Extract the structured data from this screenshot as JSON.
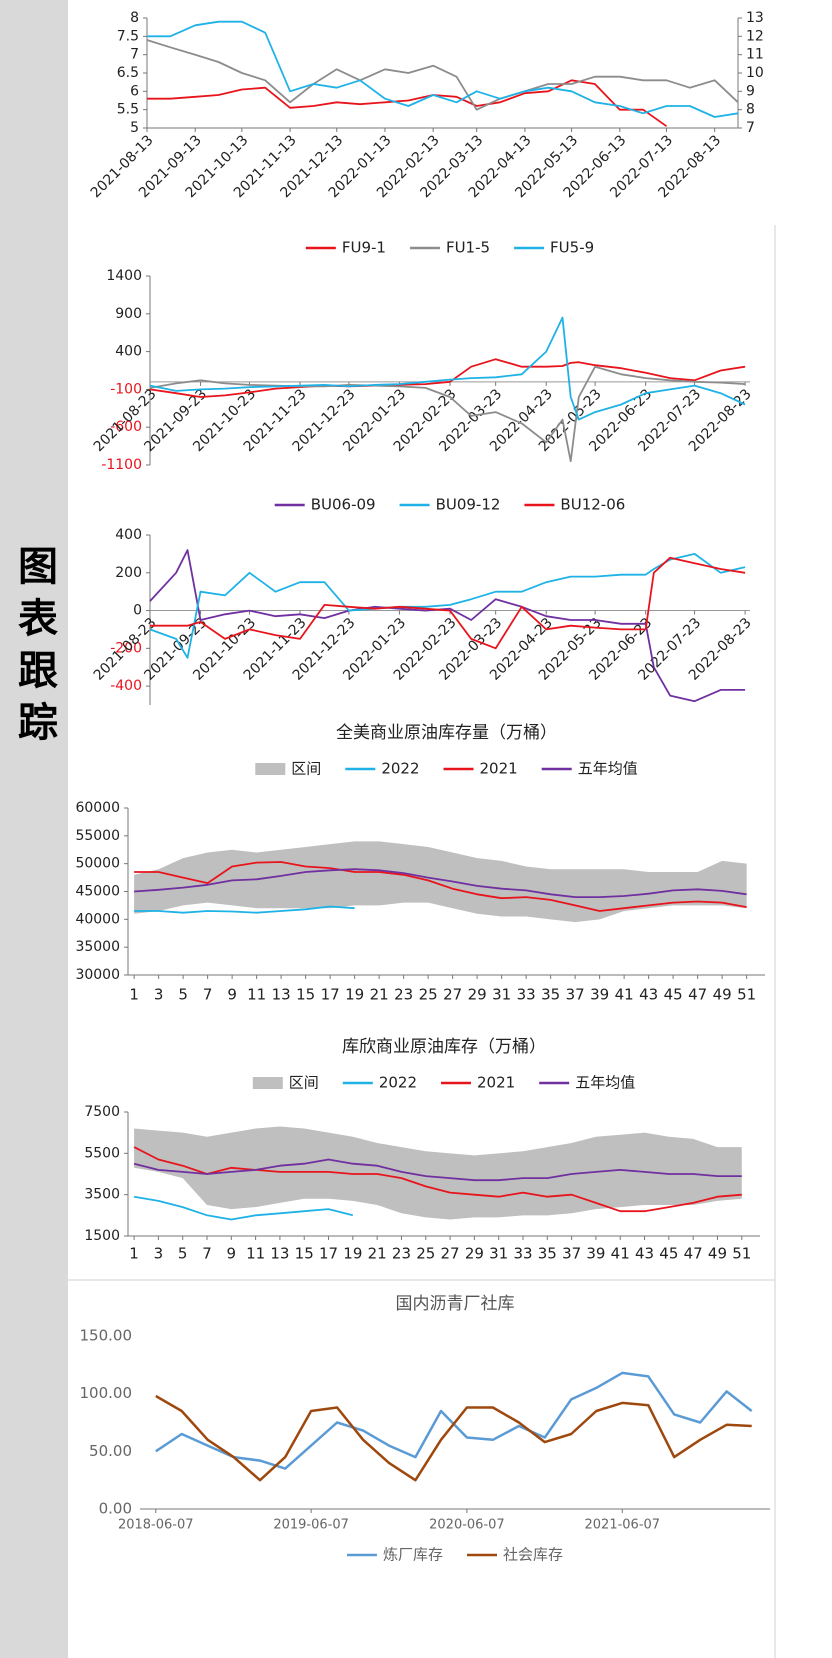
{
  "sidebar_title": "图表跟踪",
  "chart_data": [
    {
      "type": "line",
      "x": [
        "2021-08-13",
        "2021-08-28",
        "2021-09-13",
        "2021-09-28",
        "2021-10-13",
        "2021-10-28",
        "2021-11-13",
        "2021-11-28",
        "2021-12-13",
        "2021-12-28",
        "2022-01-13",
        "2022-01-28",
        "2022-02-13",
        "2022-02-28",
        "2022-03-13",
        "2022-03-28",
        "2022-04-13",
        "2022-04-28",
        "2022-05-13",
        "2022-05-28",
        "2022-06-13",
        "2022-06-28",
        "2022-07-13",
        "2022-07-28",
        "2022-08-13",
        "2022-08-28"
      ],
      "xlim": [
        "2021-08-13",
        "2022-08-28"
      ],
      "xticks": [
        "2021-08-13",
        "2021-09-13",
        "2021-10-13",
        "2021-11-13",
        "2021-12-13",
        "2022-01-13",
        "2022-02-13",
        "2022-03-13",
        "2022-04-13",
        "2022-05-13",
        "2022-06-13",
        "2022-07-13",
        "2022-08-13"
      ],
      "ylim": [
        5,
        8
      ],
      "yticks": [
        5,
        5.5,
        6,
        6.5,
        7,
        7.5,
        8
      ],
      "y2lim": [
        7,
        13
      ],
      "y2ticks": [
        7,
        8,
        9,
        10,
        11,
        12,
        13
      ],
      "series": [
        {
          "color": "#e8141c",
          "values": [
            5.8,
            5.8,
            5.85,
            5.9,
            6.05,
            6.1,
            5.55,
            5.6,
            5.7,
            5.65,
            5.7,
            5.75,
            5.9,
            5.85,
            5.6,
            5.7,
            5.95,
            6.0,
            6.3,
            6.2,
            5.5,
            5.5,
            5.05,
            null,
            null,
            null
          ]
        },
        {
          "color": "#8c8c8c",
          "values": [
            7.4,
            7.2,
            7.0,
            6.8,
            6.5,
            6.3,
            5.7,
            6.2,
            6.6,
            6.3,
            6.6,
            6.5,
            6.7,
            6.4,
            5.5,
            5.8,
            6.0,
            6.2,
            6.2,
            6.4,
            6.4,
            6.3,
            6.3,
            6.1,
            6.3,
            5.7
          ]
        },
        {
          "color": "#1fb2e6",
          "values": [
            7.5,
            7.5,
            7.8,
            7.9,
            7.9,
            7.6,
            6.0,
            6.2,
            6.1,
            6.3,
            5.8,
            5.6,
            5.9,
            5.7,
            6.0,
            5.8,
            6.0,
            6.1,
            6.0,
            5.7,
            5.6,
            5.4,
            5.6,
            5.6,
            5.3,
            5.4
          ]
        }
      ]
    },
    {
      "type": "line",
      "x": [
        "2021-08-23",
        "2021-09-08",
        "2021-09-23",
        "2021-10-08",
        "2021-10-23",
        "2021-11-08",
        "2021-11-23",
        "2021-12-08",
        "2021-12-23",
        "2022-01-08",
        "2022-01-23",
        "2022-02-08",
        "2022-02-23",
        "2022-03-08",
        "2022-03-23",
        "2022-04-08",
        "2022-04-23",
        "2022-05-03",
        "2022-05-08",
        "2022-05-13",
        "2022-05-23",
        "2022-06-08",
        "2022-06-23",
        "2022-07-08",
        "2022-07-23",
        "2022-08-08",
        "2022-08-23"
      ],
      "xlim": [
        "2021-08-23",
        "2022-08-26"
      ],
      "xticks": [
        "2021-08-23",
        "2021-09-23",
        "2021-10-23",
        "2021-11-23",
        "2021-12-23",
        "2022-01-23",
        "2022-02-23",
        "2022-03-23",
        "2022-04-23",
        "2022-05-23",
        "2022-06-23",
        "2022-07-23",
        "2022-08-23"
      ],
      "ylim": [
        -1100,
        1400
      ],
      "yticks": [
        -1100,
        -600,
        -100,
        400,
        900,
        1400
      ],
      "series": [
        {
          "name": "FU9-1",
          "color": "#e8141c",
          "values": [
            -100,
            -150,
            -200,
            -180,
            -140,
            -90,
            -70,
            -50,
            -60,
            -50,
            -40,
            -30,
            0,
            200,
            300,
            200,
            200,
            210,
            250,
            260,
            220,
            180,
            120,
            50,
            20,
            150,
            200
          ]
        },
        {
          "name": "FU1-5",
          "color": "#8c8c8c",
          "values": [
            -80,
            -20,
            20,
            -20,
            -40,
            -50,
            -60,
            -60,
            -40,
            -50,
            -60,
            -80,
            -200,
            -450,
            -400,
            -550,
            -800,
            -500,
            -1050,
            -200,
            200,
            100,
            50,
            20,
            0,
            -10,
            -30
          ]
        },
        {
          "name": "FU5-9",
          "color": "#1fb2e6",
          "values": [
            -50,
            -120,
            -100,
            -90,
            -70,
            -60,
            -50,
            -40,
            -60,
            -40,
            -30,
            0,
            30,
            50,
            60,
            100,
            400,
            850,
            -200,
            -500,
            -400,
            -300,
            -150,
            -100,
            -50,
            -150,
            -300
          ]
        }
      ]
    },
    {
      "type": "line",
      "x": [
        "2021-08-23",
        "2021-09-08",
        "2021-09-15",
        "2021-09-23",
        "2021-10-08",
        "2021-10-23",
        "2021-11-08",
        "2021-11-23",
        "2021-12-08",
        "2021-12-23",
        "2022-01-08",
        "2022-01-23",
        "2022-02-08",
        "2022-02-23",
        "2022-03-08",
        "2022-03-23",
        "2022-04-08",
        "2022-04-23",
        "2022-05-08",
        "2022-05-23",
        "2022-06-08",
        "2022-06-23",
        "2022-06-28",
        "2022-07-08",
        "2022-07-23",
        "2022-08-08",
        "2022-08-23"
      ],
      "xlim": [
        "2021-08-23",
        "2022-08-26"
      ],
      "xticks": [
        "2021-08-23",
        "2021-09-23",
        "2021-10-23",
        "2021-11-23",
        "2021-12-23",
        "2022-01-23",
        "2022-02-23",
        "2022-03-23",
        "2022-04-23",
        "2022-05-23",
        "2022-06-23",
        "2022-07-23",
        "2022-08-23"
      ],
      "ylim": [
        -500,
        400
      ],
      "yticks": [
        -400,
        -200,
        0,
        200,
        400
      ],
      "series": [
        {
          "name": "BU06-09",
          "color": "#7030a0",
          "values": [
            50,
            200,
            320,
            -50,
            -20,
            0,
            -30,
            -20,
            -40,
            0,
            20,
            10,
            0,
            10,
            -50,
            60,
            20,
            -30,
            -50,
            -50,
            -70,
            -70,
            -300,
            -450,
            -480,
            -420,
            -420
          ]
        },
        {
          "name": "BU09-12",
          "color": "#1fb2e6",
          "values": [
            -100,
            -150,
            -250,
            100,
            80,
            200,
            100,
            150,
            150,
            0,
            10,
            20,
            20,
            30,
            60,
            100,
            100,
            150,
            180,
            180,
            190,
            190,
            220,
            270,
            300,
            200,
            230
          ]
        },
        {
          "name": "BU12-06",
          "color": "#e8141c",
          "values": [
            -80,
            -80,
            -80,
            -60,
            -150,
            -100,
            -130,
            -150,
            30,
            20,
            10,
            20,
            10,
            0,
            -150,
            -200,
            20,
            -100,
            -80,
            -90,
            -100,
            -100,
            200,
            280,
            250,
            220,
            200
          ]
        }
      ]
    },
    {
      "type": "line",
      "title": "全美商业原油库存量（万桶）",
      "x": [
        1,
        3,
        5,
        7,
        9,
        11,
        13,
        15,
        17,
        19,
        21,
        23,
        25,
        27,
        29,
        31,
        33,
        35,
        37,
        39,
        41,
        43,
        45,
        47,
        49,
        51
      ],
      "xlim": [
        0.5,
        52.5
      ],
      "xticks": [
        1,
        3,
        5,
        7,
        9,
        11,
        13,
        15,
        17,
        19,
        21,
        23,
        25,
        27,
        29,
        31,
        33,
        35,
        37,
        39,
        41,
        43,
        45,
        47,
        49,
        51
      ],
      "ylim": [
        30000,
        60000
      ],
      "yticks": [
        30000,
        35000,
        40000,
        45000,
        50000,
        55000,
        60000
      ],
      "series": [
        {
          "name": "区间",
          "type": "band",
          "color": "#bfbfbf",
          "values": [
            48000,
            49000,
            51000,
            52000,
            52500,
            52000,
            52500,
            53000,
            53500,
            54000,
            54000,
            53500,
            53000,
            52000,
            51000,
            50500,
            49500,
            49000,
            49000,
            49000,
            49000,
            48500,
            48500,
            48500,
            50500,
            50000
          ],
          "low": [
            41000,
            41500,
            42500,
            43000,
            42500,
            42000,
            42000,
            42000,
            42000,
            42500,
            42500,
            43000,
            43000,
            42000,
            41000,
            40500,
            40500,
            40000,
            39500,
            40000,
            41500,
            42000,
            42500,
            42500,
            42500,
            42000
          ]
        },
        {
          "name": "2022",
          "color": "#1fb2e6",
          "values": [
            41500,
            41500,
            41200,
            41500,
            41400,
            41200,
            41500,
            41800,
            42300,
            42000,
            null,
            null,
            null,
            null,
            null,
            null,
            null,
            null,
            null,
            null,
            null,
            null,
            null,
            null,
            null,
            null
          ]
        },
        {
          "name": "2021",
          "color": "#e8141c",
          "values": [
            48500,
            48500,
            47500,
            46500,
            49500,
            50200,
            50300,
            49500,
            49200,
            48500,
            48500,
            48000,
            47000,
            45500,
            44500,
            43800,
            44000,
            43500,
            42500,
            41500,
            42000,
            42500,
            43000,
            43200,
            43000,
            42200
          ]
        },
        {
          "name": "五年均值",
          "color": "#7030a0",
          "values": [
            45000,
            45300,
            45700,
            46200,
            47000,
            47200,
            47800,
            48500,
            48800,
            49000,
            48800,
            48300,
            47500,
            46800,
            46000,
            45500,
            45200,
            44500,
            44000,
            44000,
            44200,
            44600,
            45200,
            45400,
            45100,
            44500
          ]
        }
      ]
    },
    {
      "type": "line",
      "title": "库欣商业原油库存（万桶）",
      "x": [
        1,
        3,
        5,
        7,
        9,
        11,
        13,
        15,
        17,
        19,
        21,
        23,
        25,
        27,
        29,
        31,
        33,
        35,
        37,
        39,
        41,
        43,
        45,
        47,
        49,
        51
      ],
      "xlim": [
        0.5,
        52.5
      ],
      "xticks": [
        1,
        3,
        5,
        7,
        9,
        11,
        13,
        15,
        17,
        19,
        21,
        23,
        25,
        27,
        29,
        31,
        33,
        35,
        37,
        39,
        41,
        43,
        45,
        47,
        49,
        51
      ],
      "ylim": [
        1500,
        7500
      ],
      "yticks": [
        1500,
        3500,
        5500,
        7500
      ],
      "series": [
        {
          "name": "区间",
          "type": "band",
          "color": "#bfbfbf",
          "values": [
            6700,
            6600,
            6500,
            6300,
            6500,
            6700,
            6800,
            6700,
            6500,
            6300,
            6000,
            5800,
            5600,
            5500,
            5400,
            5500,
            5600,
            5800,
            6000,
            6300,
            6400,
            6500,
            6300,
            6200,
            5800,
            5800
          ],
          "low": [
            4800,
            4600,
            4300,
            3000,
            2800,
            2900,
            3100,
            3300,
            3300,
            3200,
            3000,
            2600,
            2400,
            2300,
            2400,
            2400,
            2500,
            2500,
            2600,
            2800,
            2900,
            3000,
            3000,
            3000,
            3200,
            3300
          ]
        },
        {
          "name": "2022",
          "color": "#1fb2e6",
          "values": [
            3400,
            3200,
            2900,
            2500,
            2300,
            2500,
            2600,
            2700,
            2800,
            2500,
            null,
            null,
            null,
            null,
            null,
            null,
            null,
            null,
            null,
            null,
            null,
            null,
            null,
            null,
            null,
            null
          ]
        },
        {
          "name": "2021",
          "color": "#e8141c",
          "values": [
            5800,
            5200,
            4900,
            4500,
            4800,
            4700,
            4600,
            4600,
            4600,
            4500,
            4500,
            4300,
            3900,
            3600,
            3500,
            3400,
            3600,
            3400,
            3500,
            3100,
            2700,
            2700,
            2900,
            3100,
            3400,
            3500
          ]
        },
        {
          "name": "五年均值",
          "color": "#7030a0",
          "values": [
            5000,
            4700,
            4600,
            4500,
            4600,
            4700,
            4900,
            5000,
            5200,
            5000,
            4900,
            4600,
            4400,
            4300,
            4200,
            4200,
            4300,
            4300,
            4500,
            4600,
            4700,
            4600,
            4500,
            4500,
            4400,
            4400
          ]
        }
      ]
    },
    {
      "type": "line",
      "title": "国内沥青厂社库",
      "x": [
        "2018-06-07",
        "2018-08-07",
        "2018-10-07",
        "2018-12-07",
        "2019-02-07",
        "2019-04-07",
        "2019-06-07",
        "2019-08-07",
        "2019-10-07",
        "2019-12-07",
        "2020-02-07",
        "2020-04-07",
        "2020-06-07",
        "2020-08-07",
        "2020-10-07",
        "2020-12-07",
        "2021-02-07",
        "2021-04-07",
        "2021-06-07",
        "2021-08-07",
        "2021-10-07",
        "2021-12-07",
        "2022-02-07",
        "2022-04-07"
      ],
      "xlim": [
        "2018-05-01",
        "2022-05-20"
      ],
      "xticks": [
        "2018-06-07",
        "2019-06-07",
        "2020-06-07",
        "2021-06-07"
      ],
      "ylim": [
        0,
        150
      ],
      "yticks": [
        {
          "value": 0,
          "label": "0.00"
        },
        {
          "value": 50,
          "label": "50.00"
        },
        {
          "value": 100,
          "label": "100.00"
        },
        {
          "value": 150,
          "label": "150.00"
        }
      ],
      "series": [
        {
          "name": "炼厂库存",
          "color": "#5b9bd5",
          "values": [
            50,
            65,
            55,
            45,
            42,
            35,
            55,
            75,
            68,
            55,
            45,
            85,
            62,
            60,
            72,
            62,
            95,
            105,
            118,
            115,
            82,
            75,
            102,
            85
          ]
        },
        {
          "name": "社会库存",
          "color": "#9e480e",
          "values": [
            98,
            85,
            60,
            45,
            25,
            45,
            85,
            88,
            60,
            40,
            25,
            60,
            88,
            88,
            75,
            58,
            65,
            85,
            92,
            90,
            45,
            60,
            73,
            72
          ]
        }
      ]
    }
  ]
}
